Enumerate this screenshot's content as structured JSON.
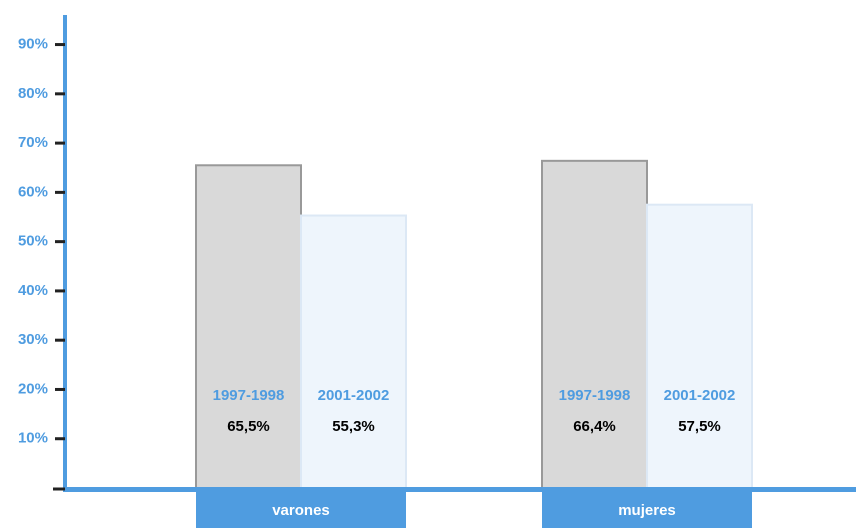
{
  "chart_data": {
    "type": "bar",
    "categories": [
      "varones",
      "mujeres"
    ],
    "series": [
      {
        "name": "1997-1998",
        "color": "#d9d9d9",
        "values": [
          65.5,
          66.4
        ],
        "value_labels": [
          "65,5%",
          "66,4%"
        ]
      },
      {
        "name": "2001-2002",
        "color": "#eef5fc",
        "values": [
          55.3,
          57.5
        ],
        "value_labels": [
          "55,3%",
          "57,5%"
        ]
      }
    ],
    "ylim": [
      0,
      96
    ],
    "yticks": [
      {
        "value": 10,
        "label": "10%"
      },
      {
        "value": 20,
        "label": "20%"
      },
      {
        "value": 30,
        "label": "30%"
      },
      {
        "value": 40,
        "label": "40%"
      },
      {
        "value": 50,
        "label": "50%"
      },
      {
        "value": 60,
        "label": "60%"
      },
      {
        "value": 70,
        "label": "70%"
      },
      {
        "value": 80,
        "label": "80%"
      },
      {
        "value": 90,
        "label": "90%"
      }
    ],
    "axis_color": "#4f9ce0"
  }
}
